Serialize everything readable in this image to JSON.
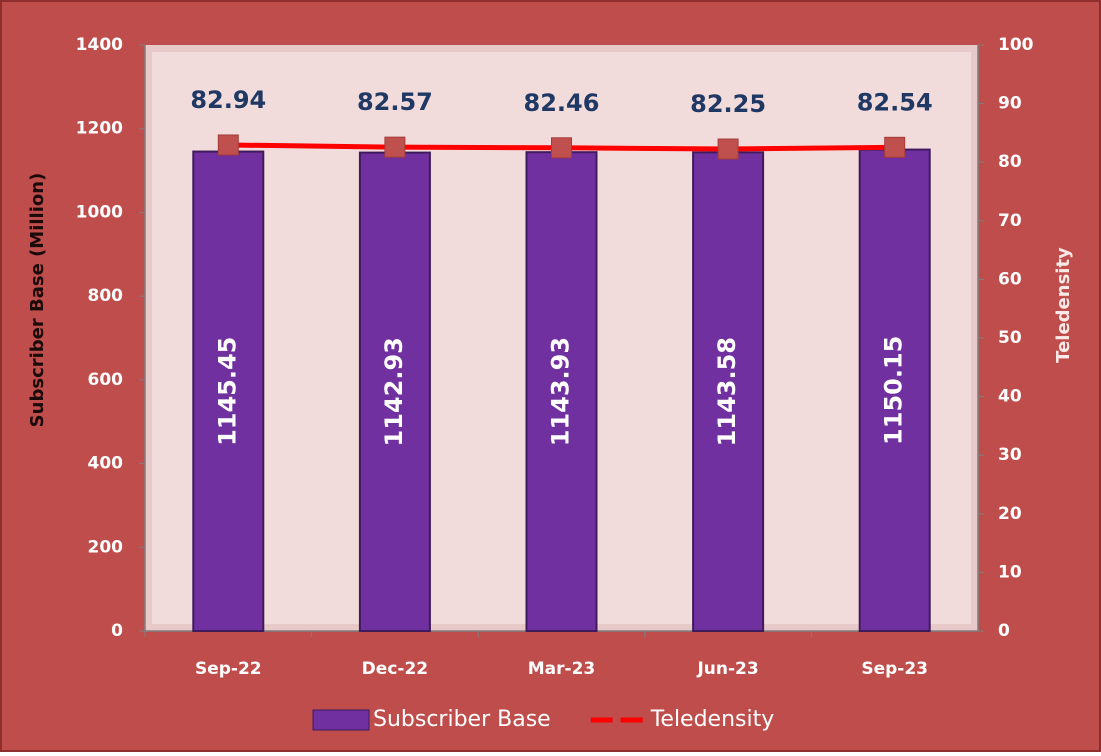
{
  "chart_data": {
    "type": "bar",
    "categories": [
      "Sep-22",
      "Dec-22",
      "Mar-23",
      "Jun-23",
      "Sep-23"
    ],
    "series": [
      {
        "name": "Subscriber Base",
        "type": "bar",
        "color": "#7030a0",
        "values": [
          1145.45,
          1142.93,
          1143.93,
          1143.58,
          1150.15
        ]
      },
      {
        "name": "Teledensity",
        "type": "line",
        "axis": "y2",
        "color": "#ff0000",
        "values": [
          82.94,
          82.57,
          82.46,
          82.25,
          82.54
        ]
      }
    ],
    "ylabel": "Subscriber Base (Million)",
    "y2label": "Teledensity",
    "ylim": [
      0,
      1400
    ],
    "yticks": [
      0,
      200,
      400,
      600,
      800,
      1000,
      1200,
      1400
    ],
    "y2lim": [
      0,
      100
    ],
    "y2ticks": [
      0,
      10,
      20,
      30,
      40,
      50,
      60,
      70,
      80,
      90,
      100
    ],
    "grid": false,
    "legend": "bottom"
  }
}
